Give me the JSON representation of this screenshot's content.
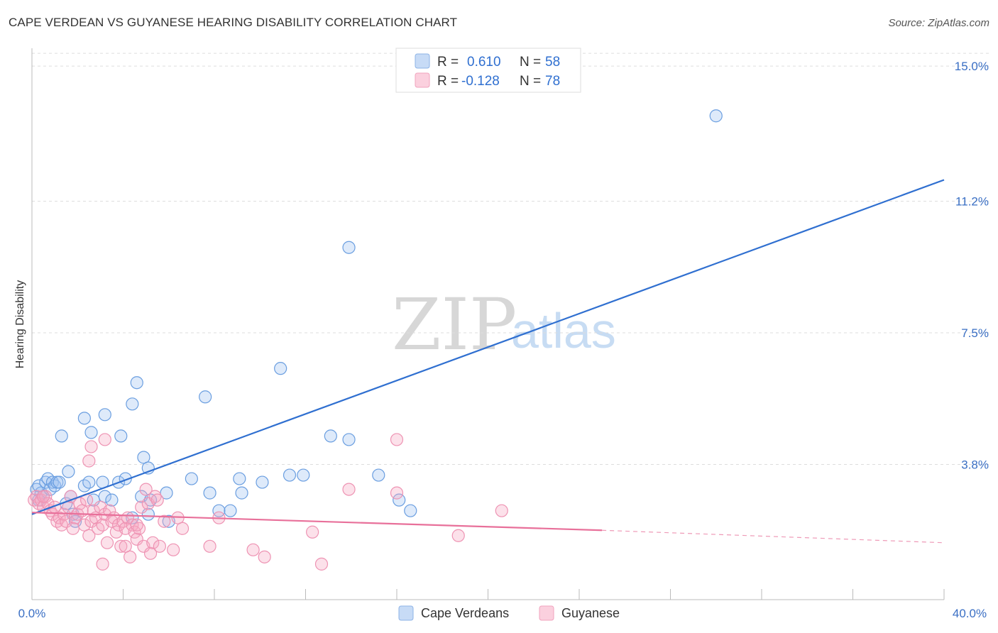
{
  "title": "CAPE VERDEAN VS GUYANESE HEARING DISABILITY CORRELATION CHART",
  "source": "Source: ZipAtlas.com",
  "watermark": {
    "zip": "ZIP",
    "atlas": "atlas"
  },
  "chart_data": {
    "type": "scatter",
    "title": "CAPE VERDEAN VS GUYANESE HEARING DISABILITY CORRELATION CHART",
    "xlabel": "",
    "ylabel": "Hearing Disability",
    "xlim": [
      0,
      40
    ],
    "ylim": [
      0,
      15.5
    ],
    "x_tick_labels": [
      "0.0%",
      "40.0%"
    ],
    "y_ticks": [
      3.8,
      7.5,
      11.2,
      15.0
    ],
    "y_tick_labels": [
      "3.8%",
      "7.5%",
      "11.2%",
      "15.0%"
    ],
    "grid": true,
    "legend_position": "top-center",
    "legend": [
      {
        "r_label": "R =",
        "r_value": "0.610",
        "n_label": "N =",
        "n_value": "58",
        "color": "#a8c8f0"
      },
      {
        "r_label": "R =",
        "r_value": "-0.128",
        "n_label": "N =",
        "n_value": "78",
        "color": "#f5b8cb"
      }
    ],
    "series": [
      {
        "name": "Cape Verdeans",
        "color": "#7aaae8",
        "line_color": "#2f6fd0",
        "trend": {
          "x0": 0,
          "y0": 2.4,
          "x1": 40,
          "y1": 11.8
        },
        "points": [
          [
            0.2,
            3.1
          ],
          [
            0.4,
            3.0
          ],
          [
            0.5,
            2.9
          ],
          [
            0.3,
            3.2
          ],
          [
            0.6,
            3.3
          ],
          [
            0.7,
            3.4
          ],
          [
            0.8,
            3.1
          ],
          [
            0.9,
            3.3
          ],
          [
            1.0,
            3.2
          ],
          [
            1.1,
            3.3
          ],
          [
            1.2,
            3.3
          ],
          [
            1.5,
            2.7
          ],
          [
            1.6,
            3.6
          ],
          [
            1.7,
            2.9
          ],
          [
            1.8,
            2.4
          ],
          [
            1.9,
            2.2
          ],
          [
            2.3,
            3.2
          ],
          [
            2.5,
            3.3
          ],
          [
            2.7,
            2.8
          ],
          [
            3.1,
            3.3
          ],
          [
            3.2,
            2.9
          ],
          [
            3.5,
            2.8
          ],
          [
            3.8,
            3.3
          ],
          [
            4.1,
            3.4
          ],
          [
            4.4,
            2.3
          ],
          [
            4.8,
            2.9
          ],
          [
            5.1,
            2.4
          ],
          [
            5.2,
            2.8
          ],
          [
            5.9,
            3.0
          ],
          [
            6.0,
            2.2
          ],
          [
            7.0,
            3.4
          ],
          [
            7.8,
            3.0
          ],
          [
            8.2,
            2.5
          ],
          [
            8.7,
            2.5
          ],
          [
            9.1,
            3.4
          ],
          [
            9.2,
            3.0
          ],
          [
            10.1,
            3.3
          ],
          [
            11.3,
            3.5
          ],
          [
            11.9,
            3.5
          ],
          [
            13.1,
            4.6
          ],
          [
            13.9,
            4.5
          ],
          [
            15.2,
            3.5
          ],
          [
            16.1,
            2.8
          ],
          [
            16.6,
            2.5
          ],
          [
            1.3,
            4.6
          ],
          [
            2.3,
            5.1
          ],
          [
            2.6,
            4.7
          ],
          [
            3.2,
            5.2
          ],
          [
            3.9,
            4.6
          ],
          [
            4.4,
            5.5
          ],
          [
            4.6,
            6.1
          ],
          [
            4.9,
            4.0
          ],
          [
            5.1,
            3.7
          ],
          [
            7.6,
            5.7
          ],
          [
            10.9,
            6.5
          ],
          [
            13.9,
            9.9
          ],
          [
            30.0,
            13.6
          ],
          [
            0.3,
            2.8
          ]
        ]
      },
      {
        "name": "Guyanese",
        "color": "#f29ab8",
        "line_color": "#e8709a",
        "trend": {
          "x0": 0,
          "y0": 2.45,
          "x1": 25,
          "y1": 1.95,
          "dash_to_x": 40,
          "dash_to_y": 1.6
        },
        "points": [
          [
            0.1,
            2.8
          ],
          [
            0.2,
            2.9
          ],
          [
            0.3,
            2.7
          ],
          [
            0.4,
            2.8
          ],
          [
            0.5,
            2.6
          ],
          [
            0.6,
            2.9
          ],
          [
            0.7,
            2.7
          ],
          [
            0.8,
            2.5
          ],
          [
            0.9,
            2.4
          ],
          [
            1.0,
            2.6
          ],
          [
            1.1,
            2.2
          ],
          [
            1.2,
            2.3
          ],
          [
            1.3,
            2.1
          ],
          [
            1.4,
            2.4
          ],
          [
            1.5,
            2.2
          ],
          [
            1.6,
            2.6
          ],
          [
            1.7,
            2.9
          ],
          [
            1.8,
            2.0
          ],
          [
            1.9,
            2.3
          ],
          [
            2.0,
            2.4
          ],
          [
            2.1,
            2.7
          ],
          [
            2.2,
            2.5
          ],
          [
            2.3,
            2.1
          ],
          [
            2.4,
            2.8
          ],
          [
            2.5,
            1.8
          ],
          [
            2.6,
            2.2
          ],
          [
            2.7,
            2.5
          ],
          [
            2.8,
            2.3
          ],
          [
            2.9,
            2.0
          ],
          [
            3.0,
            2.6
          ],
          [
            3.1,
            2.1
          ],
          [
            3.2,
            2.4
          ],
          [
            3.3,
            1.6
          ],
          [
            3.4,
            2.5
          ],
          [
            3.5,
            2.2
          ],
          [
            3.6,
            2.3
          ],
          [
            3.7,
            1.9
          ],
          [
            3.8,
            2.1
          ],
          [
            3.9,
            1.5
          ],
          [
            4.0,
            2.2
          ],
          [
            4.1,
            2.0
          ],
          [
            4.2,
            2.3
          ],
          [
            4.3,
            1.2
          ],
          [
            4.4,
            2.1
          ],
          [
            4.5,
            1.9
          ],
          [
            4.6,
            1.7
          ],
          [
            4.7,
            2.0
          ],
          [
            4.8,
            2.6
          ],
          [
            4.9,
            1.5
          ],
          [
            5.0,
            3.1
          ],
          [
            5.1,
            2.7
          ],
          [
            5.2,
            1.3
          ],
          [
            5.3,
            1.6
          ],
          [
            5.4,
            2.9
          ],
          [
            5.5,
            2.8
          ],
          [
            5.6,
            1.5
          ],
          [
            5.8,
            2.2
          ],
          [
            6.2,
            1.4
          ],
          [
            6.4,
            2.3
          ],
          [
            6.6,
            2.0
          ],
          [
            7.8,
            1.5
          ],
          [
            8.2,
            2.3
          ],
          [
            9.7,
            1.4
          ],
          [
            10.2,
            1.2
          ],
          [
            12.3,
            1.9
          ],
          [
            12.7,
            1.0
          ],
          [
            13.9,
            3.1
          ],
          [
            16.0,
            3.0
          ],
          [
            16.0,
            4.5
          ],
          [
            18.7,
            1.8
          ],
          [
            20.6,
            2.5
          ],
          [
            3.2,
            4.5
          ],
          [
            2.6,
            4.3
          ],
          [
            2.5,
            3.9
          ],
          [
            3.1,
            1.0
          ],
          [
            4.1,
            1.5
          ],
          [
            4.6,
            2.1
          ],
          [
            0.5,
            2.9
          ]
        ]
      }
    ]
  }
}
